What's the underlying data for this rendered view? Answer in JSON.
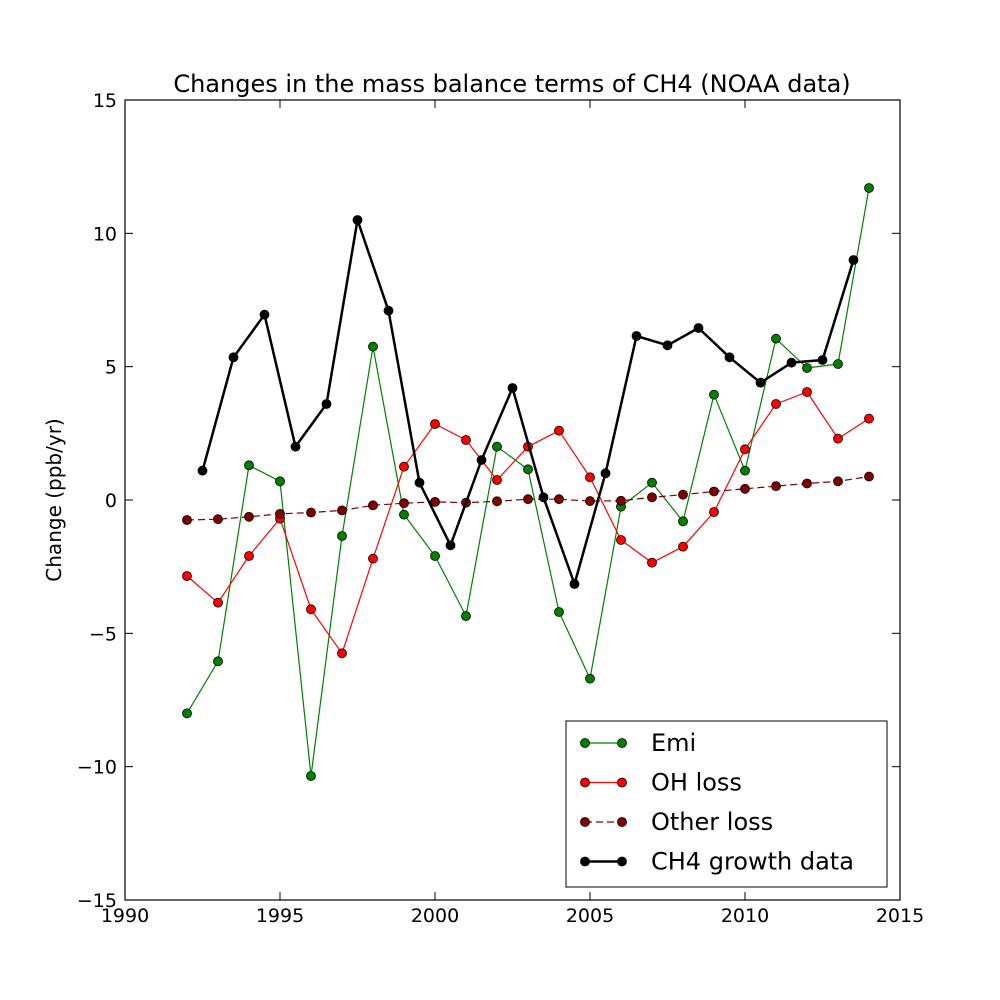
{
  "chart_data": {
    "type": "line",
    "title": "Changes in the mass balance terms of CH4 (NOAA data)",
    "xlabel": "",
    "ylabel": "Change (ppb/yr)",
    "xlim": [
      1990,
      2015
    ],
    "ylim": [
      -15,
      15
    ],
    "xticks": [
      1990,
      1995,
      2000,
      2005,
      2010,
      2015
    ],
    "yticks": [
      -15,
      -10,
      -5,
      0,
      5,
      10,
      15
    ],
    "ytick_labels": [
      "−15",
      "−10",
      "−5",
      "0",
      "5",
      "10",
      "15"
    ],
    "grid": false,
    "legend_position": "lower-right",
    "series": [
      {
        "name": "Emi",
        "color": "#008000",
        "style": "solid",
        "x": [
          1992,
          1993,
          1994,
          1995,
          1996,
          1997,
          1998,
          1999,
          2000,
          2001,
          2002,
          2003,
          2004,
          2005,
          2006,
          2007,
          2008,
          2009,
          2010,
          2011,
          2012,
          2013,
          2014
        ],
        "values": [
          -8.0,
          -6.05,
          1.3,
          0.7,
          -10.35,
          -1.35,
          5.75,
          -0.55,
          -2.1,
          -4.35,
          2.0,
          1.15,
          -4.2,
          -6.7,
          -0.25,
          0.65,
          -0.8,
          3.95,
          1.1,
          6.05,
          4.95,
          5.1,
          11.7
        ]
      },
      {
        "name": "OH loss",
        "color": "#ff0000",
        "style": "solid",
        "x": [
          1992,
          1993,
          1994,
          1995,
          1996,
          1997,
          1998,
          1999,
          2000,
          2001,
          2002,
          2003,
          2004,
          2005,
          2006,
          2007,
          2008,
          2009,
          2010,
          2011,
          2012,
          2013,
          2014
        ],
        "values": [
          -2.85,
          -3.85,
          -2.1,
          -0.7,
          -4.1,
          -5.75,
          -2.2,
          1.25,
          2.85,
          2.25,
          0.75,
          2.0,
          2.6,
          0.85,
          -1.5,
          -2.35,
          -1.75,
          -0.45,
          1.9,
          3.6,
          4.05,
          2.3,
          3.05
        ]
      },
      {
        "name": "Other loss",
        "color": "#800000",
        "style": "dashed",
        "x": [
          1992,
          1993,
          1994,
          1995,
          1996,
          1997,
          1998,
          1999,
          2000,
          2001,
          2002,
          2003,
          2004,
          2005,
          2006,
          2007,
          2008,
          2009,
          2010,
          2011,
          2012,
          2013,
          2014
        ],
        "values": [
          -0.75,
          -0.72,
          -0.63,
          -0.52,
          -0.47,
          -0.39,
          -0.2,
          -0.12,
          -0.07,
          -0.1,
          -0.05,
          0.03,
          0.03,
          -0.04,
          -0.03,
          0.1,
          0.2,
          0.32,
          0.42,
          0.52,
          0.62,
          0.7,
          0.88
        ]
      },
      {
        "name": "CH4 growth data",
        "color": "#000000",
        "style": "solid-thick",
        "x": [
          1992.5,
          1993.5,
          1994.5,
          1995.5,
          1996.5,
          1997.5,
          1998.5,
          1999.5,
          2000.5,
          2001.5,
          2002.5,
          2003.5,
          2004.5,
          2005.5,
          2006.5,
          2007.5,
          2008.5,
          2009.5,
          2010.5,
          2011.5,
          2012.5,
          2013.5
        ],
        "values": [
          1.1,
          5.35,
          6.95,
          2.0,
          3.6,
          10.5,
          7.1,
          0.65,
          -1.7,
          1.5,
          4.2,
          0.1,
          -3.15,
          1.0,
          6.15,
          5.8,
          6.45,
          5.35,
          4.4,
          5.15,
          5.25,
          9.0
        ]
      }
    ]
  }
}
